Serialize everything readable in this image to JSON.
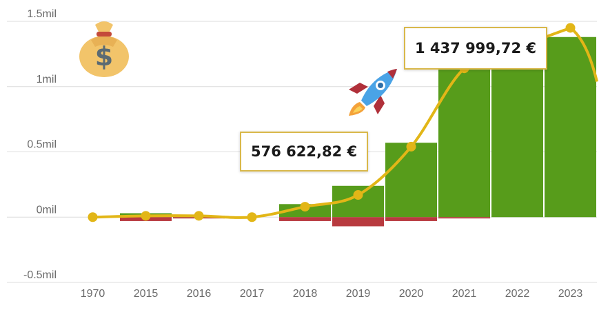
{
  "chart_data": {
    "type": "bar",
    "categories": [
      "1970",
      "2015",
      "2016",
      "2017",
      "2018",
      "2019",
      "2020",
      "2021",
      "2022",
      "2023"
    ],
    "series": [
      {
        "kind": "bar",
        "color": "#579c1b",
        "values": [
          0,
          0.03,
          0.01,
          0.0,
          0.1,
          0.24,
          0.57,
          1.13,
          1.41,
          1.38
        ]
      },
      {
        "kind": "bar",
        "color": "#b83a3f",
        "values": [
          0,
          -0.03,
          -0.01,
          0.0,
          -0.03,
          -0.07,
          -0.03,
          -0.01,
          0,
          0
        ]
      },
      {
        "kind": "line",
        "color": "#e2b617",
        "values": [
          0.0,
          0.01,
          0.01,
          0.0,
          0.08,
          0.17,
          0.54,
          1.14,
          1.3,
          1.45
        ]
      }
    ],
    "y_ticks": [
      "-0.5mil",
      "0mil",
      "0.5mil",
      "1mil",
      "1.5mil"
    ],
    "ylim": [
      -0.5,
      1.5
    ],
    "xlabel": "",
    "ylabel": "",
    "grid": true,
    "annotations": [
      {
        "text": "576 622,82 €",
        "category": "2020"
      },
      {
        "text": "1 437 999,72 €",
        "category": "2023"
      }
    ]
  },
  "icons": {
    "money_bag": "money-bag-icon",
    "rocket": "rocket-icon"
  },
  "colors": {
    "gain": "#579c1b",
    "loss": "#b83a3f",
    "line": "#e2b617",
    "grid": "#dcdcdc",
    "callout_border": "#d9b84a"
  }
}
